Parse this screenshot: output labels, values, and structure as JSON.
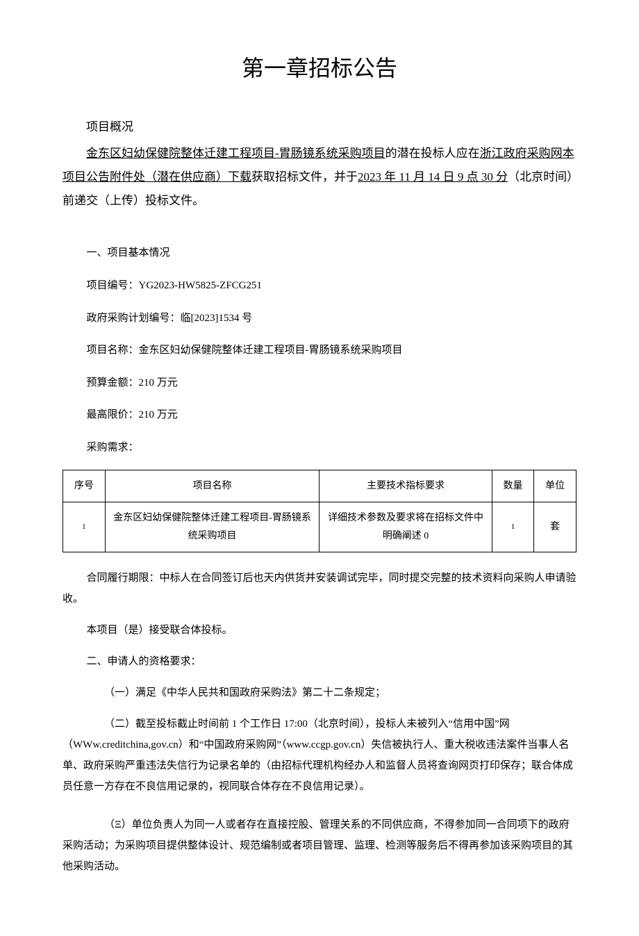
{
  "chapter_title": "第一章招标公告",
  "overview_label": "项目概况",
  "intro": {
    "part1_underlined": "金东区妇幼保健院整体迁建工程项目-胃肠镜系统采购项目",
    "part2_plain": "的潜在投标人应在",
    "part3_underlined": "浙江政府采购网本项目公告附件处（潜在供应商）下载",
    "part4_plain": "获取招标文件，并于",
    "part5_underlined": "2023 年 11 月 14 日 9 点 30 分",
    "part6_plain": "（北京时间）前递交（上传）投标文件。"
  },
  "section1_title": "一、项目基本情况",
  "fields": {
    "project_number_label": "项目编号：",
    "project_number_value": "YG2023-HW5825-ZFCG251",
    "plan_number_label": "政府采购计划编号：",
    "plan_number_value": "临[2023]1534 号",
    "project_name_label": "项目名称：",
    "project_name_value": "金东区妇幼保健院整体迁建工程项目-胃肠镜系统采购项目",
    "budget_label": "预算金额：",
    "budget_value": "210 万元",
    "ceiling_label": "最高限价：",
    "ceiling_value": "210 万元",
    "purchase_req_label": "采购需求："
  },
  "table": {
    "headers": {
      "seq": "序号",
      "name": "项目名称",
      "tech": "主要技术指标要求",
      "qty": "数量",
      "unit": "单位"
    },
    "rows": [
      {
        "seq": "1",
        "name": "金东区妇幼保健院整体迁建工程项目-胃肠镜系统采购项目",
        "tech": "详细技术参数及要求将在招标文件中明确阐述 0",
        "qty": "1",
        "unit": "套"
      }
    ]
  },
  "contract_term": "合同履行期限：中标人在合同签订后也天内供货并安装调试完毕，同时提交完整的技术资料向采购人申请验收。",
  "joint_bid": "本项目（是）接受联合体投标。",
  "section2_title": "二、申请人的资格要求：",
  "req_items": {
    "item1": "（一）满足《中华人民共和国政府采购法》第二十二条规定；",
    "item2": "（二）截至投标截止时间前 1 个工作日 17:00（北京时间），投标人未被列入“信用中国”网（WWw.creditchina,gov.cn）和“中国政府采购网”（www.ccgp.gov.cn）失信被执行人、重大税收违法案件当事人名单、政府采购严重违法失信行为记录名单的（由招标代理机构经办人和监督人员将查询网页打印保存；联合体成员任意一方存在不良信用记录的，视同联合体存在不良信用记录）。",
    "item3": "（Ξ）单位负责人为同一人或者存在直接控股、管理关系的不同供应商，不得参加同一合同项下的政府采购活动；为采购项目提供整体设计、规范编制或者项目管理、监理、检测等服务后不得再参加该采购项目的其他采购活动。"
  },
  "colors": {
    "text": "#000000",
    "background": "#ffffff",
    "border": "#000000"
  }
}
